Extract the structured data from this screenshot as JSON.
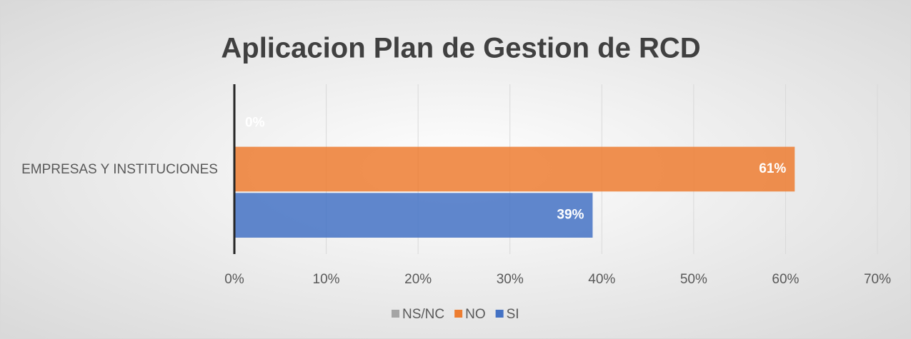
{
  "chart_data": {
    "type": "bar",
    "orientation": "horizontal",
    "title": "Aplicacion Plan de Gestion de RCD",
    "categories": [
      "EMPRESAS Y INSTITUCIONES"
    ],
    "series": [
      {
        "name": "NS/NC",
        "color": "#a5a5a5",
        "values": [
          0
        ],
        "value_labels": [
          "0%"
        ]
      },
      {
        "name": "NO",
        "color": "#ed7d31",
        "values": [
          61
        ],
        "value_labels": [
          "61%"
        ]
      },
      {
        "name": "SI",
        "color": "#4472c4",
        "values": [
          39
        ],
        "value_labels": [
          "39%"
        ]
      }
    ],
    "xlim": [
      0,
      70
    ],
    "xticks": [
      {
        "value": 0,
        "label": "0%"
      },
      {
        "value": 10,
        "label": "10%"
      },
      {
        "value": 20,
        "label": "20%"
      },
      {
        "value": 30,
        "label": "30%"
      },
      {
        "value": 40,
        "label": "40%"
      },
      {
        "value": 50,
        "label": "50%"
      },
      {
        "value": 60,
        "label": "60%"
      },
      {
        "value": 70,
        "label": "70%"
      }
    ],
    "grid": true,
    "legend": "bottom"
  }
}
